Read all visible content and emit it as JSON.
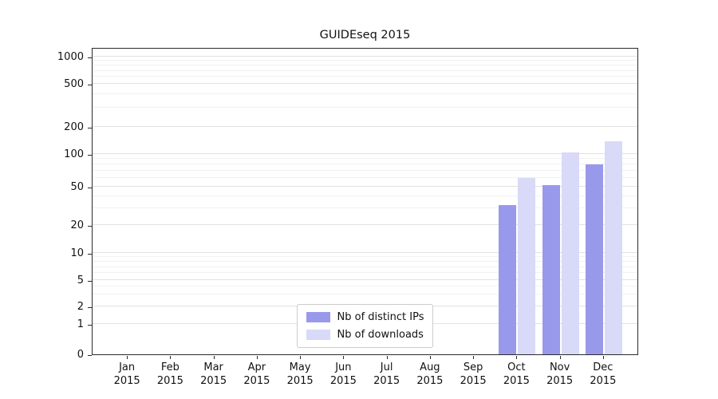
{
  "chart_data": {
    "type": "bar",
    "title": "GUIDEseq 2015",
    "categories": [
      {
        "month": "Jan",
        "year": "2015"
      },
      {
        "month": "Feb",
        "year": "2015"
      },
      {
        "month": "Mar",
        "year": "2015"
      },
      {
        "month": "Apr",
        "year": "2015"
      },
      {
        "month": "May",
        "year": "2015"
      },
      {
        "month": "Jun",
        "year": "2015"
      },
      {
        "month": "Jul",
        "year": "2015"
      },
      {
        "month": "Aug",
        "year": "2015"
      },
      {
        "month": "Sep",
        "year": "2015"
      },
      {
        "month": "Oct",
        "year": "2015"
      },
      {
        "month": "Nov",
        "year": "2015"
      },
      {
        "month": "Dec",
        "year": "2015"
      }
    ],
    "series": [
      {
        "name": "Nb of distinct IPs",
        "color": "#9999ec",
        "values": [
          0,
          0,
          0,
          0,
          0,
          0,
          0,
          0,
          0,
          32,
          52,
          80
        ]
      },
      {
        "name": "Nb of downloads",
        "color": "#d9d9f8",
        "values": [
          0,
          0,
          0,
          0,
          0,
          0,
          0,
          0,
          0,
          60,
          105,
          140
        ]
      }
    ],
    "y_axis": {
      "scale": "symlog",
      "ticks": [
        0,
        1,
        2,
        5,
        10,
        20,
        50,
        100,
        200,
        500,
        1000
      ],
      "minor_gridlines": [
        3,
        4,
        6,
        7,
        8,
        9,
        30,
        40,
        60,
        70,
        80,
        90,
        300,
        400,
        600,
        700,
        800,
        900
      ]
    },
    "grid": true,
    "legend_position": "lower center"
  }
}
